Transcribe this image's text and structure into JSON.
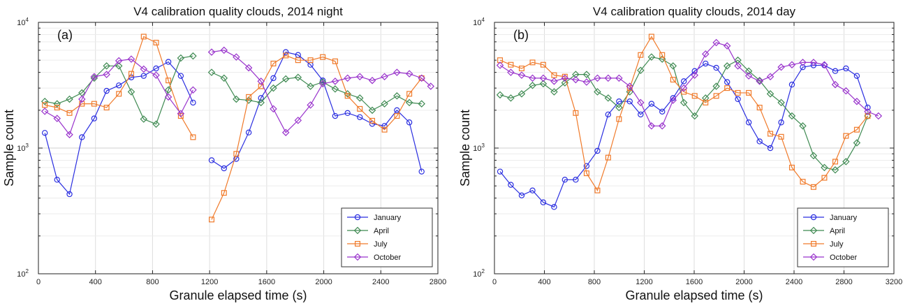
{
  "chart_data": [
    {
      "type": "line",
      "title": "V4 calibration quality clouds, 2014 night",
      "panel_label": "(a)",
      "xlabel": "Granule elapsed time (s)",
      "ylabel": "Sample count",
      "xlim": [
        0,
        2800
      ],
      "xticks": [
        "0",
        "400",
        "800",
        "1200",
        "1600",
        "2000",
        "2400",
        "2800"
      ],
      "xtick_values": [
        0,
        400,
        800,
        1200,
        1600,
        2000,
        2400,
        2800
      ],
      "ylim": [
        100,
        10000
      ],
      "yscale": "log",
      "yticks": [
        {
          "base": "10",
          "exp": "2"
        },
        {
          "base": "10",
          "exp": "3"
        },
        {
          "base": "10",
          "exp": "4"
        }
      ],
      "grid": true,
      "legend_position": "bottom-right",
      "x": [
        45,
        131,
        218,
        305,
        391,
        478,
        564,
        651,
        738,
        825,
        911,
        998,
        1084,
        1171,
        1214,
        1301,
        1387,
        1474,
        1560,
        1647,
        1734,
        1820,
        1907,
        1993,
        2080,
        2167,
        2253,
        2340,
        2426,
        2513,
        2600,
        2686,
        2750
      ],
      "series": [
        {
          "name": "January",
          "color": "#2a2ee0",
          "marker": "circle",
          "values": [
            1320,
            560,
            430,
            1220,
            1720,
            2850,
            3150,
            3650,
            3750,
            4300,
            4850,
            3750,
            2300,
            null,
            800,
            690,
            820,
            1330,
            2500,
            3600,
            5800,
            5500,
            4600,
            3450,
            1800,
            1900,
            1760,
            1560,
            1500,
            2000,
            1600,
            650,
            null
          ]
        },
        {
          "name": "April",
          "color": "#3f8a52",
          "marker": "diamond",
          "values": [
            2350,
            2250,
            2450,
            2750,
            3600,
            4500,
            4500,
            2800,
            1700,
            1550,
            2900,
            5200,
            5400,
            null,
            4000,
            3600,
            2450,
            2400,
            2300,
            3000,
            3550,
            3650,
            3100,
            3350,
            2950,
            2700,
            2500,
            2000,
            2250,
            2600,
            2300,
            2250,
            null
          ]
        },
        {
          "name": "July",
          "color": "#f07a2a",
          "marker": "square",
          "values": [
            2200,
            2100,
            1900,
            2250,
            2250,
            2100,
            2700,
            3900,
            7700,
            6900,
            3450,
            1800,
            1220,
            null,
            270,
            440,
            900,
            2550,
            3100,
            4700,
            5450,
            5000,
            5000,
            5300,
            4900,
            2600,
            2050,
            1650,
            1400,
            1800,
            2700,
            3600,
            null
          ]
        },
        {
          "name": "October",
          "color": "#9933cc",
          "marker": "diamond",
          "values": [
            1960,
            1720,
            1280,
            2450,
            3700,
            3850,
            4950,
            5100,
            4250,
            3800,
            2550,
            1880,
            2900,
            null,
            5800,
            6000,
            5300,
            4350,
            3400,
            2050,
            1330,
            1660,
            2200,
            3250,
            3400,
            3600,
            3700,
            3450,
            3700,
            4000,
            3900,
            3600,
            3100
          ]
        }
      ]
    },
    {
      "type": "line",
      "title": "V4 calibration quality clouds, 2014 day",
      "panel_label": "(b)",
      "xlabel": "Granule elapsed time (s)",
      "ylabel": "Sample count",
      "xlim": [
        0,
        3200
      ],
      "xticks": [
        "0",
        "400",
        "800",
        "1200",
        "1600",
        "2000",
        "2400",
        "2800",
        "3200"
      ],
      "xtick_values": [
        0,
        400,
        800,
        1200,
        1600,
        2000,
        2400,
        2800,
        3200
      ],
      "ylim": [
        100,
        10000
      ],
      "yscale": "log",
      "yticks": [
        {
          "base": "10",
          "exp": "2"
        },
        {
          "base": "10",
          "exp": "3"
        },
        {
          "base": "10",
          "exp": "4"
        }
      ],
      "grid": true,
      "legend_position": "bottom-right",
      "x": [
        45,
        131,
        218,
        305,
        391,
        478,
        564,
        651,
        738,
        825,
        911,
        998,
        1084,
        1171,
        1258,
        1344,
        1431,
        1517,
        1604,
        1691,
        1777,
        1864,
        1950,
        2037,
        2124,
        2210,
        2297,
        2383,
        2470,
        2556,
        2643,
        2730,
        2816,
        2903,
        2990,
        3076
      ],
      "series": [
        {
          "name": "January",
          "color": "#2a2ee0",
          "marker": "circle",
          "values": [
            650,
            510,
            420,
            460,
            370,
            340,
            560,
            560,
            720,
            950,
            1850,
            2350,
            2350,
            1850,
            2250,
            1950,
            2500,
            3400,
            4100,
            4700,
            4350,
            3350,
            2450,
            1600,
            1130,
            1000,
            1600,
            3200,
            4400,
            4550,
            4550,
            4100,
            4300,
            3750,
            2100,
            null
          ]
        },
        {
          "name": "April",
          "color": "#3f8a52",
          "marker": "diamond",
          "values": [
            2650,
            2500,
            2700,
            3150,
            3250,
            2800,
            3300,
            3850,
            3850,
            2800,
            2500,
            2100,
            2800,
            4150,
            5300,
            5100,
            4500,
            2300,
            1800,
            2500,
            3100,
            4500,
            5000,
            4100,
            3450,
            2700,
            2300,
            1800,
            1500,
            870,
            700,
            670,
            780,
            1100,
            1800,
            null
          ]
        },
        {
          "name": "July",
          "color": "#f07a2a",
          "marker": "square",
          "values": [
            5000,
            4600,
            4300,
            4800,
            4600,
            3800,
            3700,
            1900,
            630,
            460,
            840,
            1700,
            3000,
            5500,
            7700,
            5500,
            3500,
            2800,
            2600,
            2300,
            2600,
            3000,
            2750,
            2750,
            2100,
            1300,
            1230,
            700,
            540,
            490,
            580,
            780,
            1250,
            1400,
            1800,
            null
          ]
        },
        {
          "name": "October",
          "color": "#9933cc",
          "marker": "diamond",
          "values": [
            4550,
            4000,
            3800,
            3600,
            3600,
            3400,
            3600,
            3500,
            3350,
            3600,
            3600,
            3600,
            3100,
            2300,
            1500,
            1500,
            2400,
            3000,
            3800,
            5600,
            6900,
            6500,
            4500,
            3750,
            3400,
            3700,
            4400,
            4600,
            4800,
            4800,
            4600,
            3200,
            2850,
            2350,
            1950,
            1800
          ]
        }
      ]
    }
  ]
}
